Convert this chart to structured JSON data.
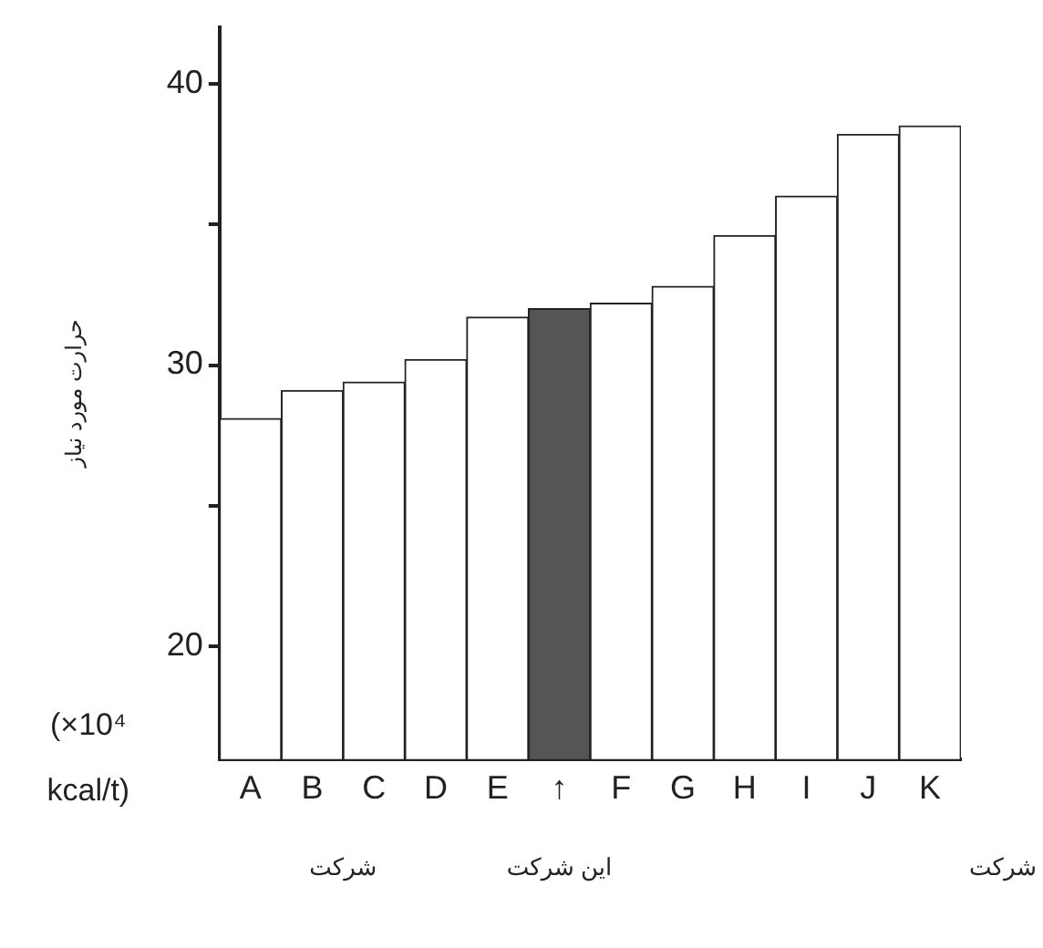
{
  "chart_data": {
    "type": "bar",
    "ylabel": "حرارت مورد نیاز",
    "categories": [
      "A",
      "B",
      "C",
      "D",
      "E",
      "↑",
      "F",
      "G",
      "H",
      "I",
      "J",
      "K"
    ],
    "values": [
      28.1,
      29.1,
      29.4,
      30.2,
      31.7,
      32.0,
      32.2,
      32.8,
      34.6,
      36.0,
      38.2,
      38.5
    ],
    "colors": [
      "#ffffff",
      "#ffffff",
      "#ffffff",
      "#ffffff",
      "#ffffff",
      "#555555",
      "#ffffff",
      "#ffffff",
      "#ffffff",
      "#ffffff",
      "#ffffff",
      "#ffffff"
    ],
    "ylim": [
      16,
      42
    ],
    "yticks": [
      20,
      {
        "value": 25,
        "label": null
      },
      30,
      {
        "value": 35,
        "label": null
      },
      40
    ],
    "annotations": [
      "(×10⁴ kcal/t)",
      "شرکت",
      "این شرکت",
      "شرکت"
    ],
    "grid": false,
    "legend": false
  }
}
